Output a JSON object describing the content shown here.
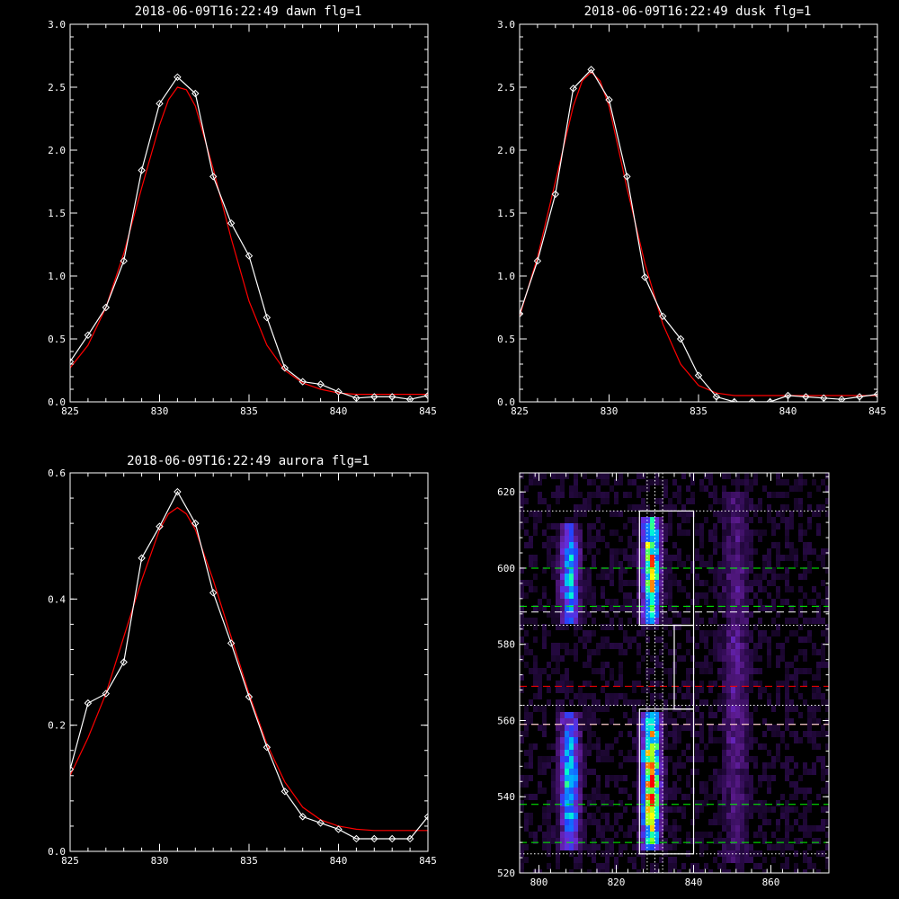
{
  "chart_data": [
    {
      "type": "line",
      "title": "2018-06-09T16:22:49 dawn flg=1",
      "xlim": [
        825,
        845
      ],
      "ylim": [
        0,
        3
      ],
      "xticks": [
        825,
        830,
        835,
        840,
        845
      ],
      "yticks": [
        0.0,
        0.5,
        1.0,
        1.5,
        2.0,
        2.5,
        3.0
      ],
      "ytick_decimals": 1,
      "grid": false,
      "series": [
        {
          "color": "#ffffff",
          "markers": "diamond",
          "x": [
            825,
            826,
            827,
            828,
            829,
            830,
            831,
            832,
            833,
            834,
            835,
            836,
            837,
            838,
            839,
            840,
            841,
            842,
            843,
            844,
            845
          ],
          "y": [
            0.32,
            0.53,
            0.75,
            1.12,
            1.84,
            2.37,
            2.58,
            2.45,
            1.79,
            1.42,
            1.16,
            0.67,
            0.27,
            0.16,
            0.14,
            0.08,
            0.03,
            0.04,
            0.04,
            0.02,
            0.05
          ]
        },
        {
          "color": "#ff0000",
          "markers": "none",
          "x": [
            825,
            826,
            827,
            828,
            829,
            830,
            830.5,
            831,
            831.5,
            832,
            833,
            834,
            835,
            836,
            837,
            838,
            839,
            840,
            841,
            842,
            843,
            844,
            845
          ],
          "y": [
            0.27,
            0.45,
            0.75,
            1.18,
            1.7,
            2.2,
            2.4,
            2.5,
            2.48,
            2.35,
            1.85,
            1.3,
            0.8,
            0.45,
            0.25,
            0.15,
            0.1,
            0.07,
            0.06,
            0.06,
            0.06,
            0.06,
            0.06
          ]
        }
      ]
    },
    {
      "type": "line",
      "title": "2018-06-09T16:22:49 dusk flg=1",
      "xlim": [
        825,
        845
      ],
      "ylim": [
        0,
        3
      ],
      "xticks": [
        825,
        830,
        835,
        840,
        845
      ],
      "yticks": [
        0.0,
        0.5,
        1.0,
        1.5,
        2.0,
        2.5,
        3.0
      ],
      "ytick_decimals": 1,
      "grid": false,
      "series": [
        {
          "color": "#ffffff",
          "markers": "diamond",
          "x": [
            825,
            826,
            827,
            828,
            829,
            830,
            831,
            832,
            833,
            834,
            835,
            836,
            837,
            838,
            839,
            840,
            841,
            842,
            843,
            844,
            845
          ],
          "y": [
            0.7,
            1.12,
            1.65,
            2.49,
            2.64,
            2.4,
            1.79,
            0.99,
            0.68,
            0.5,
            0.21,
            0.04,
            0.0,
            0.0,
            0.0,
            0.05,
            0.04,
            0.03,
            0.02,
            0.04,
            0.06
          ]
        },
        {
          "color": "#ff0000",
          "markers": "none",
          "x": [
            825,
            826,
            827,
            828,
            828.5,
            829,
            829.5,
            830,
            831,
            832,
            833,
            834,
            835,
            836,
            837,
            838,
            839,
            840,
            841,
            842,
            843,
            844,
            845
          ],
          "y": [
            0.68,
            1.15,
            1.75,
            2.35,
            2.55,
            2.62,
            2.55,
            2.35,
            1.7,
            1.1,
            0.62,
            0.3,
            0.13,
            0.07,
            0.05,
            0.05,
            0.05,
            0.05,
            0.05,
            0.05,
            0.05,
            0.05,
            0.05
          ]
        }
      ]
    },
    {
      "type": "line",
      "title": "2018-06-09T16:22:49 aurora flg=1",
      "xlim": [
        825,
        845
      ],
      "ylim": [
        0,
        0.6
      ],
      "xticks": [
        825,
        830,
        835,
        840,
        845
      ],
      "yticks": [
        0.0,
        0.2,
        0.4,
        0.6
      ],
      "ytick_decimals": 1,
      "grid": false,
      "series": [
        {
          "color": "#ffffff",
          "markers": "diamond",
          "x": [
            825,
            826,
            827,
            828,
            829,
            830,
            831,
            832,
            833,
            834,
            835,
            836,
            837,
            838,
            839,
            840,
            841,
            842,
            843,
            844,
            845
          ],
          "y": [
            0.13,
            0.235,
            0.25,
            0.3,
            0.465,
            0.515,
            0.57,
            0.52,
            0.41,
            0.33,
            0.245,
            0.165,
            0.095,
            0.055,
            0.045,
            0.035,
            0.02,
            0.02,
            0.02,
            0.02,
            0.055
          ]
        },
        {
          "color": "#ff0000",
          "markers": "none",
          "x": [
            825,
            826,
            827,
            828,
            829,
            830,
            830.5,
            831,
            831.5,
            832,
            833,
            834,
            835,
            836,
            837,
            838,
            839,
            840,
            841,
            842,
            843,
            844,
            845
          ],
          "y": [
            0.12,
            0.18,
            0.25,
            0.34,
            0.43,
            0.51,
            0.535,
            0.545,
            0.535,
            0.51,
            0.43,
            0.34,
            0.25,
            0.17,
            0.11,
            0.07,
            0.05,
            0.04,
            0.035,
            0.033,
            0.033,
            0.033,
            0.033
          ]
        }
      ]
    },
    {
      "type": "heatmap",
      "title": "",
      "xlim": [
        795,
        875
      ],
      "ylim": [
        520,
        625
      ],
      "xticks": [
        800,
        820,
        840,
        860
      ],
      "yticks": [
        520,
        540,
        560,
        580,
        600,
        620
      ],
      "ytick_decimals": 0,
      "grid": false,
      "colormap": [
        "#000000",
        "#2a0a4a",
        "#5a1a8c",
        "#6a2ad6",
        "#1e46ff",
        "#00aaff",
        "#00ffd0",
        "#70ff30",
        "#ffff00",
        "#ff8000",
        "#ff0000"
      ],
      "emission_bands": [
        {
          "x": 808,
          "width": 2.3,
          "yrange": [
            585,
            612
          ],
          "peak": 0.55
        },
        {
          "x": 808,
          "width": 2.3,
          "yrange": [
            526,
            562
          ],
          "peak": 0.6
        },
        {
          "x": 829,
          "width": 2.2,
          "yrange": [
            585,
            614
          ],
          "peak": 0.85
        },
        {
          "x": 829,
          "width": 2.2,
          "yrange": [
            526,
            562
          ],
          "peak": 1.0
        },
        {
          "x": 851,
          "width": 3.0,
          "yrange": [
            522,
            620
          ],
          "peak": 0.18
        }
      ],
      "hlines": [
        {
          "y": 615,
          "color": "#ffffff",
          "style": "dotted"
        },
        {
          "y": 600,
          "color": "#00ff00",
          "style": "dashed"
        },
        {
          "y": 590,
          "color": "#00ff00",
          "style": "dashed"
        },
        {
          "y": 588.5,
          "color": "#ffffff",
          "style": "dashed"
        },
        {
          "y": 585,
          "color": "#ffffff",
          "style": "dotted"
        },
        {
          "y": 569,
          "color": "#ff0000",
          "style": "dashed"
        },
        {
          "y": 564,
          "color": "#ffffff",
          "style": "dotted"
        },
        {
          "y": 559,
          "color": "#ff0000",
          "style": "dashed"
        },
        {
          "y": 559,
          "color": "#ffffff",
          "style": "dashed"
        },
        {
          "y": 538,
          "color": "#00ff00",
          "style": "dashed"
        },
        {
          "y": 528,
          "color": "#00ff00",
          "style": "dashed"
        },
        {
          "y": 525,
          "color": "#ffffff",
          "style": "dotted"
        }
      ],
      "vlines": [
        {
          "x": 828,
          "color": "#ffffff",
          "style": "dotted"
        },
        {
          "x": 830,
          "color": "#ffffff",
          "style": "dotted"
        },
        {
          "x": 832,
          "color": "#ffffff",
          "style": "dotted"
        }
      ],
      "boxes": [
        {
          "x": [
            826,
            840
          ],
          "y": [
            585,
            615
          ],
          "color": "#ffffff"
        },
        {
          "x": [
            835,
            840
          ],
          "y": [
            563,
            585
          ],
          "color": "#ffffff"
        },
        {
          "x": [
            826,
            840
          ],
          "y": [
            525,
            563
          ],
          "color": "#ffffff"
        }
      ]
    }
  ]
}
